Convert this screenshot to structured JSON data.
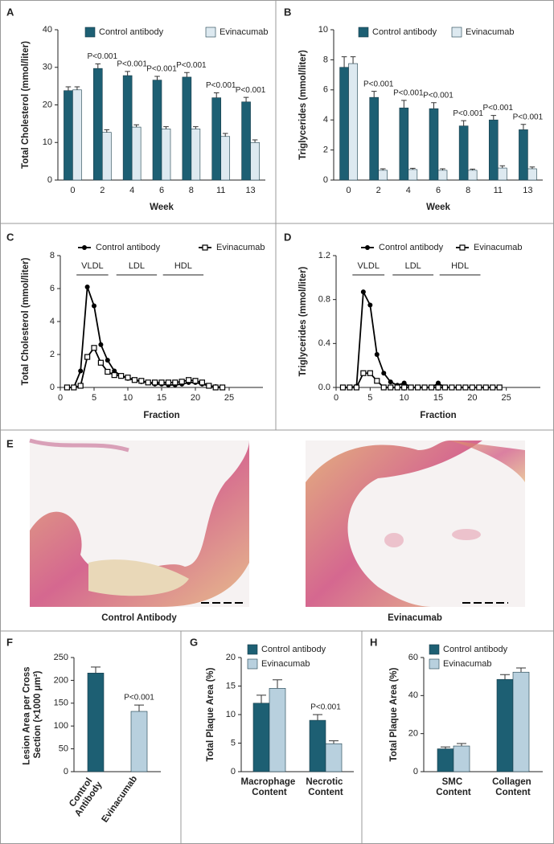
{
  "chart_data": [
    {
      "panel": "A",
      "type": "bar",
      "ylabel": "Total Cholesterol (mmol/liter)",
      "xlabel": "Week",
      "categories": [
        "0",
        "2",
        "4",
        "6",
        "8",
        "11",
        "13"
      ],
      "ylim": [
        0,
        40
      ],
      "yticks": [
        0,
        10,
        20,
        30,
        40
      ],
      "annotations": [
        null,
        "P<0.001",
        "P<0.001",
        "P<0.001",
        "P<0.001",
        "P<0.001",
        "P<0.001"
      ],
      "series": [
        {
          "name": "Control antibody",
          "color": "#1d5f73",
          "values": [
            23.8,
            29.7,
            27.8,
            26.6,
            27.4,
            21.9,
            20.8
          ],
          "errors": [
            1.0,
            1.2,
            1.1,
            1.0,
            1.2,
            1.3,
            1.2
          ]
        },
        {
          "name": "Evinacumab",
          "color": "#dde9f0",
          "values": [
            24.0,
            12.7,
            14.1,
            13.6,
            13.6,
            11.6,
            10.0
          ],
          "errors": [
            0.8,
            0.7,
            0.6,
            0.6,
            0.6,
            0.8,
            0.7
          ]
        }
      ]
    },
    {
      "panel": "B",
      "type": "bar",
      "ylabel": "Triglycerides (mmol/liter)",
      "xlabel": "Week",
      "categories": [
        "0",
        "2",
        "4",
        "6",
        "8",
        "11",
        "13"
      ],
      "ylim": [
        0,
        10
      ],
      "yticks": [
        0,
        2,
        4,
        6,
        8,
        10
      ],
      "annotations": [
        null,
        "P<0.001",
        "P<0.001",
        "P<0.001",
        "P<0.001",
        "P<0.001",
        "P<0.001"
      ],
      "series": [
        {
          "name": "Control antibody",
          "color": "#1d5f73",
          "values": [
            7.5,
            5.5,
            4.8,
            4.75,
            3.6,
            4.0,
            3.35
          ],
          "errors": [
            0.7,
            0.4,
            0.5,
            0.4,
            0.35,
            0.3,
            0.35
          ]
        },
        {
          "name": "Evinacumab",
          "color": "#dde9f0",
          "values": [
            7.75,
            0.65,
            0.7,
            0.65,
            0.65,
            0.8,
            0.75
          ],
          "errors": [
            0.45,
            0.1,
            0.08,
            0.1,
            0.08,
            0.15,
            0.12
          ]
        }
      ]
    },
    {
      "panel": "C",
      "type": "line",
      "ylabel": "Total Cholesterol (mmol/liter)",
      "xlabel": "Fraction",
      "x": [
        1,
        2,
        3,
        4,
        5,
        6,
        7,
        8,
        9,
        10,
        11,
        12,
        13,
        14,
        15,
        16,
        17,
        18,
        19,
        20,
        21,
        22,
        23,
        24
      ],
      "xlim": [
        0,
        30
      ],
      "xticks": [
        0,
        5,
        10,
        15,
        20,
        25
      ],
      "ylim": [
        0,
        8
      ],
      "yticks": [
        0,
        2,
        4,
        6,
        8
      ],
      "ranges": [
        {
          "label": "VLDL",
          "start": 2.4,
          "end": 7.1
        },
        {
          "label": "LDL",
          "start": 8.3,
          "end": 14.3
        },
        {
          "label": "HDL",
          "start": 15.2,
          "end": 21.2
        }
      ],
      "series": [
        {
          "name": "Control antibody",
          "color": "#000000",
          "marker": "circle",
          "values": [
            0,
            0,
            1.0,
            6.1,
            4.95,
            2.6,
            1.65,
            1.0,
            0.7,
            0.55,
            0.45,
            0.35,
            0.3,
            0.2,
            0.2,
            0.15,
            0.15,
            0.2,
            0.3,
            0.3,
            0.2,
            0.1,
            0.05,
            0
          ]
        },
        {
          "name": "Evinacumab",
          "color": "#000000",
          "marker": "open-square",
          "values": [
            0,
            0,
            0.1,
            1.85,
            2.4,
            1.5,
            0.95,
            0.75,
            0.7,
            0.6,
            0.45,
            0.4,
            0.3,
            0.3,
            0.3,
            0.3,
            0.3,
            0.35,
            0.45,
            0.4,
            0.3,
            0.1,
            0,
            0
          ]
        }
      ]
    },
    {
      "panel": "D",
      "type": "line",
      "ylabel": "Triglycerides (mmol/liter)",
      "xlabel": "Fraction",
      "x": [
        1,
        2,
        3,
        4,
        5,
        6,
        7,
        8,
        9,
        10,
        11,
        12,
        13,
        14,
        15,
        16,
        17,
        18,
        19,
        20,
        21,
        22,
        23,
        24
      ],
      "xlim": [
        0,
        30
      ],
      "xticks": [
        0,
        5,
        10,
        15,
        20,
        25
      ],
      "ylim": [
        0,
        1.2
      ],
      "yticks": [
        {
          "value": 0,
          "label": "0.0"
        },
        0.4,
        0.8,
        1.2
      ],
      "ranges": [
        {
          "label": "VLDL",
          "start": 2.4,
          "end": 7.1
        },
        {
          "label": "LDL",
          "start": 8.3,
          "end": 14.3
        },
        {
          "label": "HDL",
          "start": 15.2,
          "end": 21.2
        }
      ],
      "series": [
        {
          "name": "Control antibody",
          "color": "#000000",
          "marker": "circle",
          "values": [
            0,
            0,
            0.01,
            0.87,
            0.75,
            0.3,
            0.13,
            0.05,
            0.02,
            0.04,
            0,
            0,
            0,
            0,
            0.04,
            0,
            0,
            0,
            0,
            0,
            0,
            0,
            0,
            0
          ]
        },
        {
          "name": "Evinacumab",
          "color": "#000000",
          "marker": "open-square",
          "values": [
            0,
            0,
            0,
            0.13,
            0.13,
            0.06,
            0,
            0,
            0,
            0,
            0,
            0,
            0,
            0,
            0,
            0,
            0,
            0,
            0,
            0,
            0,
            0,
            0,
            0
          ]
        }
      ]
    },
    {
      "panel": "E",
      "type": "image",
      "captions": [
        "Control Antibody",
        "Evinacumab"
      ]
    },
    {
      "panel": "F",
      "type": "bar",
      "ylabel": "Lesion Area per Cross Section (×1000 μm²)",
      "categories": [
        "Control Antibody",
        "Evinacumab"
      ],
      "ylim": [
        0,
        250
      ],
      "yticks": [
        0,
        50,
        100,
        150,
        200,
        250
      ],
      "annotations": [
        null,
        "P<0.001"
      ],
      "series": [
        {
          "name": null,
          "color": null,
          "values": [
            216,
            132
          ],
          "errors": [
            13,
            14
          ]
        }
      ],
      "colors": [
        "#1d5f73",
        "#b8d0de"
      ]
    },
    {
      "panel": "G",
      "type": "bar",
      "ylabel": "Total Plaque Area (%)",
      "categories": [
        "Macrophage Content",
        "Necrotic Content"
      ],
      "ylim": [
        0,
        20
      ],
      "yticks": [
        0,
        5,
        10,
        15,
        20
      ],
      "annotations": [
        null,
        "P<0.001"
      ],
      "series": [
        {
          "name": "Control antibody",
          "color": "#1d5f73",
          "values": [
            12.0,
            9.0
          ],
          "errors": [
            1.4,
            1.0
          ]
        },
        {
          "name": "Evinacumab",
          "color": "#b8d0de",
          "values": [
            14.6,
            4.9
          ],
          "errors": [
            1.5,
            0.5
          ]
        }
      ]
    },
    {
      "panel": "H",
      "type": "bar",
      "ylabel": "Total Plaque Area (%)",
      "categories": [
        "SMC Content",
        "Collagen Content"
      ],
      "ylim": [
        0,
        60
      ],
      "yticks": [
        0,
        20,
        40,
        60
      ],
      "series": [
        {
          "name": "Control antibody",
          "color": "#1d5f73",
          "values": [
            12.0,
            48.5
          ],
          "errors": [
            1.0,
            2.5
          ]
        },
        {
          "name": "Evinacumab",
          "color": "#b8d0de",
          "values": [
            13.5,
            52.3
          ],
          "errors": [
            1.3,
            2.2
          ]
        }
      ]
    }
  ]
}
